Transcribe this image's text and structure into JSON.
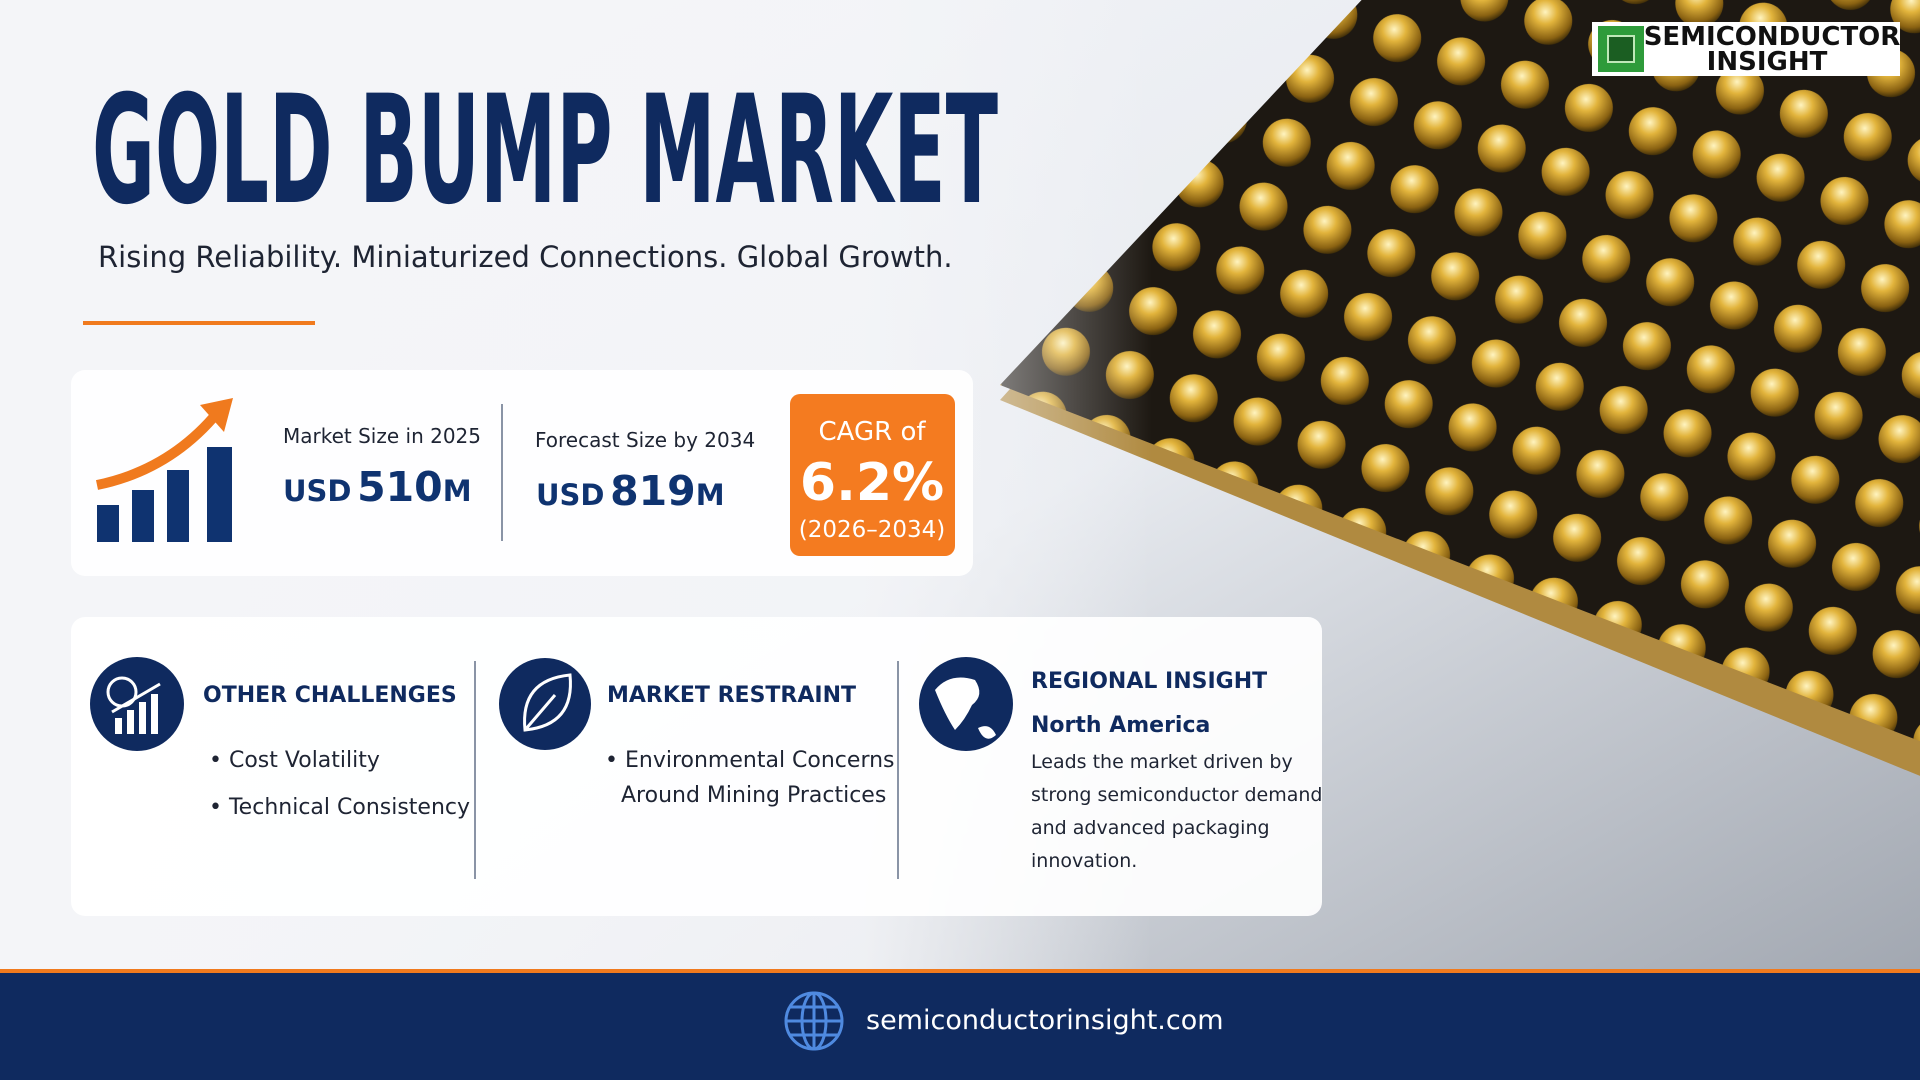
{
  "header": {
    "title": "GOLD BUMP MARKET",
    "subtitle": "Rising Reliability. Miniaturized Connections. Global Growth."
  },
  "logo": {
    "line1": "SEMICONDUCTOR",
    "line2": "INSIGHT"
  },
  "metrics": [
    {
      "label": "Market Size in 2025",
      "currency": "USD",
      "amount": "510",
      "unit": "M"
    },
    {
      "label": "Forecast Size by 2034",
      "currency": "USD",
      "amount": "819",
      "unit": "M"
    }
  ],
  "cagr": {
    "label": "CAGR of",
    "value": "6.2%",
    "period": "(2026–2034)"
  },
  "panels": [
    {
      "heading": "OTHER CHALLENGES",
      "bullets": [
        "Cost Volatility",
        "Technical Consistency"
      ]
    },
    {
      "heading": "MARKET RESTRAINT",
      "bullets": [
        "Environmental Concerns",
        "Around Mining Practices"
      ]
    },
    {
      "heading": "REGIONAL INSIGHT",
      "region": "North America",
      "lines": [
        "Leads the market driven by",
        "strong semiconductor demand",
        "and advanced packaging",
        "innovation."
      ]
    }
  ],
  "footer": {
    "url": "semiconductorinsight.com"
  }
}
